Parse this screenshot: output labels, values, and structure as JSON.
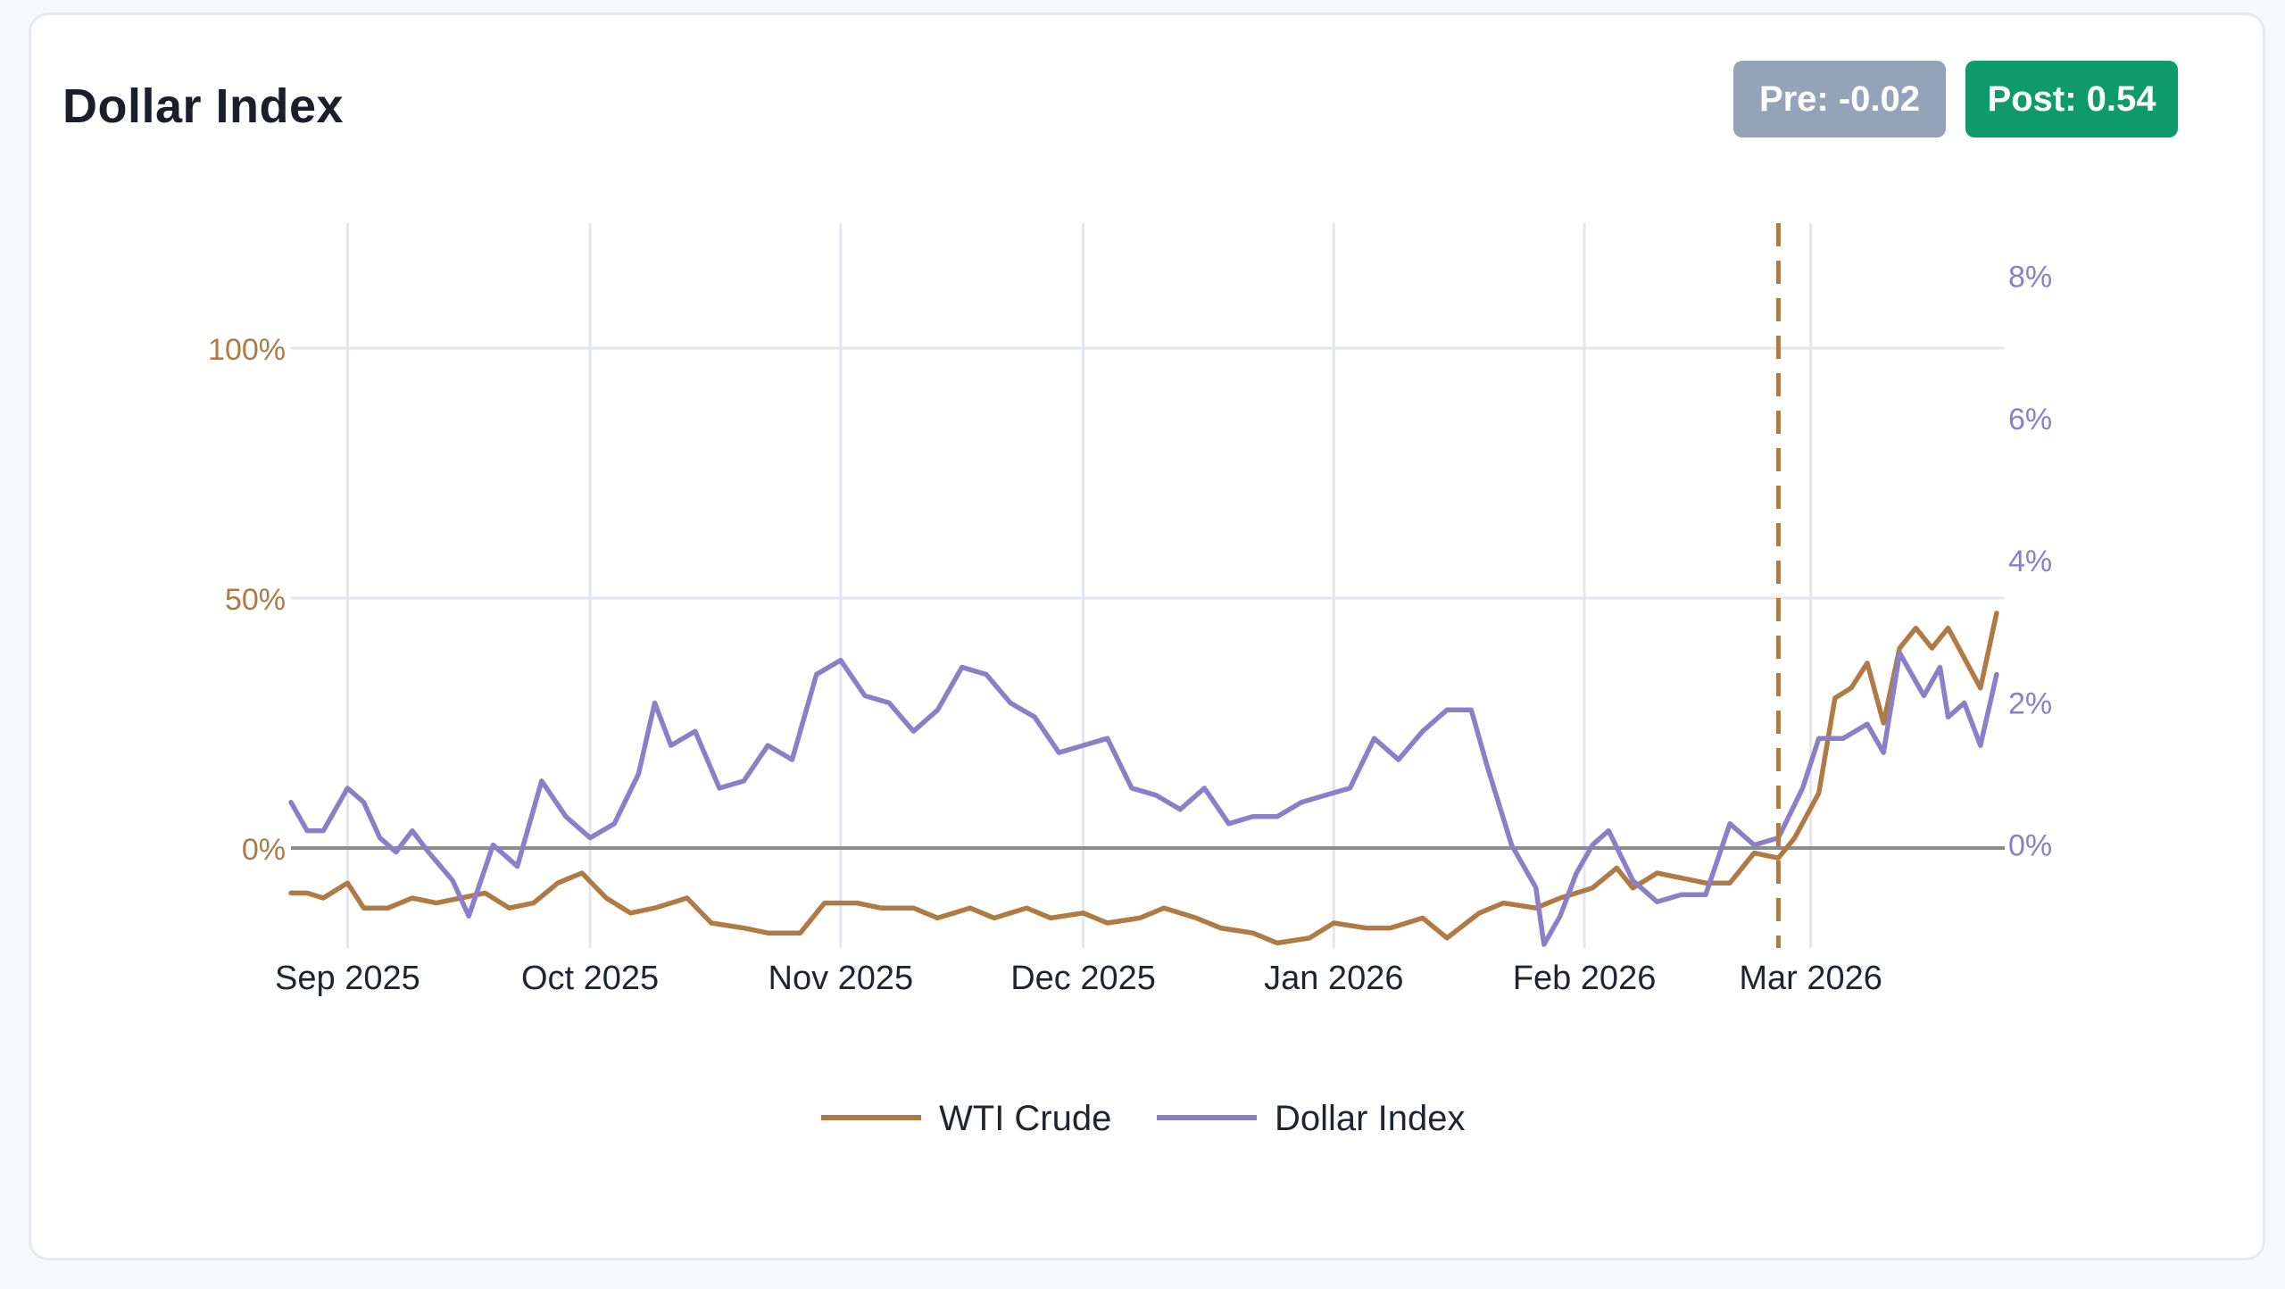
{
  "header": {
    "title": "Dollar Index",
    "badges": {
      "pre_label": "Pre: -0.02",
      "post_label": "Post: 0.54",
      "pre_color": "#94a3b8",
      "post_color": "#0e9a6b"
    }
  },
  "chart_data": {
    "type": "line",
    "title": "Dollar Index",
    "xlabel": "",
    "ylabel": "",
    "x_axis": {
      "type": "date",
      "range": [
        "2025-08-25",
        "2026-03-25"
      ],
      "ticks": [
        {
          "date": "2025-09-01",
          "label": "Sep 2025"
        },
        {
          "date": "2025-10-01",
          "label": "Oct 2025"
        },
        {
          "date": "2025-11-01",
          "label": "Nov 2025"
        },
        {
          "date": "2025-12-01",
          "label": "Dec 2025"
        },
        {
          "date": "2026-01-01",
          "label": "Jan 2026"
        },
        {
          "date": "2026-02-01",
          "label": "Feb 2026"
        },
        {
          "date": "2026-03-01",
          "label": "Mar 2026"
        }
      ]
    },
    "y_left": {
      "series": "WTI Crude",
      "unit": "%",
      "range": [
        -20,
        125
      ],
      "ticks": [
        {
          "value": 0,
          "label": "0%"
        },
        {
          "value": 50,
          "label": "50%"
        },
        {
          "value": 100,
          "label": "100%"
        }
      ],
      "color": "#b07a45"
    },
    "y_right": {
      "series": "Dollar Index",
      "unit": "%",
      "range": [
        -1.45,
        8.75
      ],
      "ticks": [
        {
          "value": 0,
          "label": "0%"
        },
        {
          "value": 2,
          "label": "2%"
        },
        {
          "value": 4,
          "label": "4%"
        },
        {
          "value": 6,
          "label": "6%"
        },
        {
          "value": 8,
          "label": "8%"
        }
      ],
      "color": "#8a7fc8"
    },
    "grid": true,
    "zero_line": true,
    "event_line": {
      "date": "2026-02-25",
      "style": "dashed",
      "color": "#b07a45"
    },
    "legend_position": "bottom-center",
    "series": [
      {
        "name": "WTI Crude",
        "axis": "left",
        "color": "#b07a45",
        "points": [
          [
            "2025-08-25",
            -9
          ],
          [
            "2025-08-27",
            -9
          ],
          [
            "2025-08-29",
            -10
          ],
          [
            "2025-09-01",
            -7
          ],
          [
            "2025-09-03",
            -12
          ],
          [
            "2025-09-06",
            -12
          ],
          [
            "2025-09-09",
            -10
          ],
          [
            "2025-09-12",
            -11
          ],
          [
            "2025-09-15",
            -10
          ],
          [
            "2025-09-18",
            -9
          ],
          [
            "2025-09-21",
            -12
          ],
          [
            "2025-09-24",
            -11
          ],
          [
            "2025-09-27",
            -7
          ],
          [
            "2025-09-30",
            -5
          ],
          [
            "2025-10-03",
            -10
          ],
          [
            "2025-10-06",
            -13
          ],
          [
            "2025-10-09",
            -12
          ],
          [
            "2025-10-13",
            -10
          ],
          [
            "2025-10-16",
            -15
          ],
          [
            "2025-10-20",
            -16
          ],
          [
            "2025-10-23",
            -17
          ],
          [
            "2025-10-27",
            -17
          ],
          [
            "2025-10-30",
            -11
          ],
          [
            "2025-11-03",
            -11
          ],
          [
            "2025-11-06",
            -12
          ],
          [
            "2025-11-10",
            -12
          ],
          [
            "2025-11-13",
            -14
          ],
          [
            "2025-11-17",
            -12
          ],
          [
            "2025-11-20",
            -14
          ],
          [
            "2025-11-24",
            -12
          ],
          [
            "2025-11-27",
            -14
          ],
          [
            "2025-12-01",
            -13
          ],
          [
            "2025-12-04",
            -15
          ],
          [
            "2025-12-08",
            -14
          ],
          [
            "2025-12-11",
            -12
          ],
          [
            "2025-12-15",
            -14
          ],
          [
            "2025-12-18",
            -16
          ],
          [
            "2025-12-22",
            -17
          ],
          [
            "2025-12-25",
            -19
          ],
          [
            "2025-12-29",
            -18
          ],
          [
            "2026-01-01",
            -15
          ],
          [
            "2026-01-05",
            -16
          ],
          [
            "2026-01-08",
            -16
          ],
          [
            "2026-01-12",
            -14
          ],
          [
            "2026-01-15",
            -18
          ],
          [
            "2026-01-19",
            -13
          ],
          [
            "2026-01-22",
            -11
          ],
          [
            "2026-01-26",
            -12
          ],
          [
            "2026-01-29",
            -10
          ],
          [
            "2026-02-02",
            -8
          ],
          [
            "2026-02-05",
            -4
          ],
          [
            "2026-02-07",
            -8
          ],
          [
            "2026-02-10",
            -5
          ],
          [
            "2026-02-13",
            -6
          ],
          [
            "2026-02-16",
            -7
          ],
          [
            "2026-02-19",
            -7
          ],
          [
            "2026-02-22",
            -1
          ],
          [
            "2026-02-25",
            -2
          ],
          [
            "2026-02-27",
            2
          ],
          [
            "2026-03-02",
            11
          ],
          [
            "2026-03-04",
            30
          ],
          [
            "2026-03-06",
            32
          ],
          [
            "2026-03-08",
            37
          ],
          [
            "2026-03-10",
            25
          ],
          [
            "2026-03-12",
            40
          ],
          [
            "2026-03-14",
            44
          ],
          [
            "2026-03-16",
            40
          ],
          [
            "2026-03-18",
            44
          ],
          [
            "2026-03-20",
            38
          ],
          [
            "2026-03-22",
            32
          ],
          [
            "2026-03-24",
            47
          ]
        ]
      },
      {
        "name": "Dollar Index",
        "axis": "right",
        "color": "#8a7fc8",
        "points": [
          [
            "2025-08-25",
            0.6
          ],
          [
            "2025-08-27",
            0.2
          ],
          [
            "2025-08-29",
            0.2
          ],
          [
            "2025-09-01",
            0.8
          ],
          [
            "2025-09-03",
            0.6
          ],
          [
            "2025-09-05",
            0.1
          ],
          [
            "2025-09-07",
            -0.1
          ],
          [
            "2025-09-09",
            0.2
          ],
          [
            "2025-09-11",
            -0.1
          ],
          [
            "2025-09-14",
            -0.5
          ],
          [
            "2025-09-16",
            -1.0
          ],
          [
            "2025-09-19",
            0.0
          ],
          [
            "2025-09-22",
            -0.3
          ],
          [
            "2025-09-25",
            0.9
          ],
          [
            "2025-09-28",
            0.4
          ],
          [
            "2025-10-01",
            0.1
          ],
          [
            "2025-10-04",
            0.3
          ],
          [
            "2025-10-07",
            1.0
          ],
          [
            "2025-10-09",
            2.0
          ],
          [
            "2025-10-11",
            1.4
          ],
          [
            "2025-10-14",
            1.6
          ],
          [
            "2025-10-17",
            0.8
          ],
          [
            "2025-10-20",
            0.9
          ],
          [
            "2025-10-23",
            1.4
          ],
          [
            "2025-10-26",
            1.2
          ],
          [
            "2025-10-29",
            2.4
          ],
          [
            "2025-11-01",
            2.6
          ],
          [
            "2025-11-04",
            2.1
          ],
          [
            "2025-11-07",
            2.0
          ],
          [
            "2025-11-10",
            1.6
          ],
          [
            "2025-11-13",
            1.9
          ],
          [
            "2025-11-16",
            2.5
          ],
          [
            "2025-11-19",
            2.4
          ],
          [
            "2025-11-22",
            2.0
          ],
          [
            "2025-11-25",
            1.8
          ],
          [
            "2025-11-28",
            1.3
          ],
          [
            "2025-12-01",
            1.4
          ],
          [
            "2025-12-04",
            1.5
          ],
          [
            "2025-12-07",
            0.8
          ],
          [
            "2025-12-10",
            0.7
          ],
          [
            "2025-12-13",
            0.5
          ],
          [
            "2025-12-16",
            0.8
          ],
          [
            "2025-12-19",
            0.3
          ],
          [
            "2025-12-22",
            0.4
          ],
          [
            "2025-12-25",
            0.4
          ],
          [
            "2025-12-28",
            0.6
          ],
          [
            "2025-12-31",
            0.7
          ],
          [
            "2026-01-03",
            0.8
          ],
          [
            "2026-01-06",
            1.5
          ],
          [
            "2026-01-09",
            1.2
          ],
          [
            "2026-01-12",
            1.6
          ],
          [
            "2026-01-15",
            1.9
          ],
          [
            "2026-01-18",
            1.9
          ],
          [
            "2026-01-20",
            1.1
          ],
          [
            "2026-01-23",
            0.0
          ],
          [
            "2026-01-26",
            -0.6
          ],
          [
            "2026-01-27",
            -1.4
          ],
          [
            "2026-01-29",
            -1.0
          ],
          [
            "2026-01-31",
            -0.4
          ],
          [
            "2026-02-02",
            0.0
          ],
          [
            "2026-02-04",
            0.2
          ],
          [
            "2026-02-07",
            -0.5
          ],
          [
            "2026-02-10",
            -0.8
          ],
          [
            "2026-02-13",
            -0.7
          ],
          [
            "2026-02-16",
            -0.7
          ],
          [
            "2026-02-19",
            0.3
          ],
          [
            "2026-02-22",
            0.0
          ],
          [
            "2026-02-25",
            0.1
          ],
          [
            "2026-02-28",
            0.8
          ],
          [
            "2026-03-02",
            1.5
          ],
          [
            "2026-03-05",
            1.5
          ],
          [
            "2026-03-08",
            1.7
          ],
          [
            "2026-03-10",
            1.3
          ],
          [
            "2026-03-12",
            2.7
          ],
          [
            "2026-03-15",
            2.1
          ],
          [
            "2026-03-17",
            2.5
          ],
          [
            "2026-03-18",
            1.8
          ],
          [
            "2026-03-20",
            2.0
          ],
          [
            "2026-03-22",
            1.4
          ],
          [
            "2026-03-24",
            2.4
          ]
        ]
      }
    ]
  }
}
